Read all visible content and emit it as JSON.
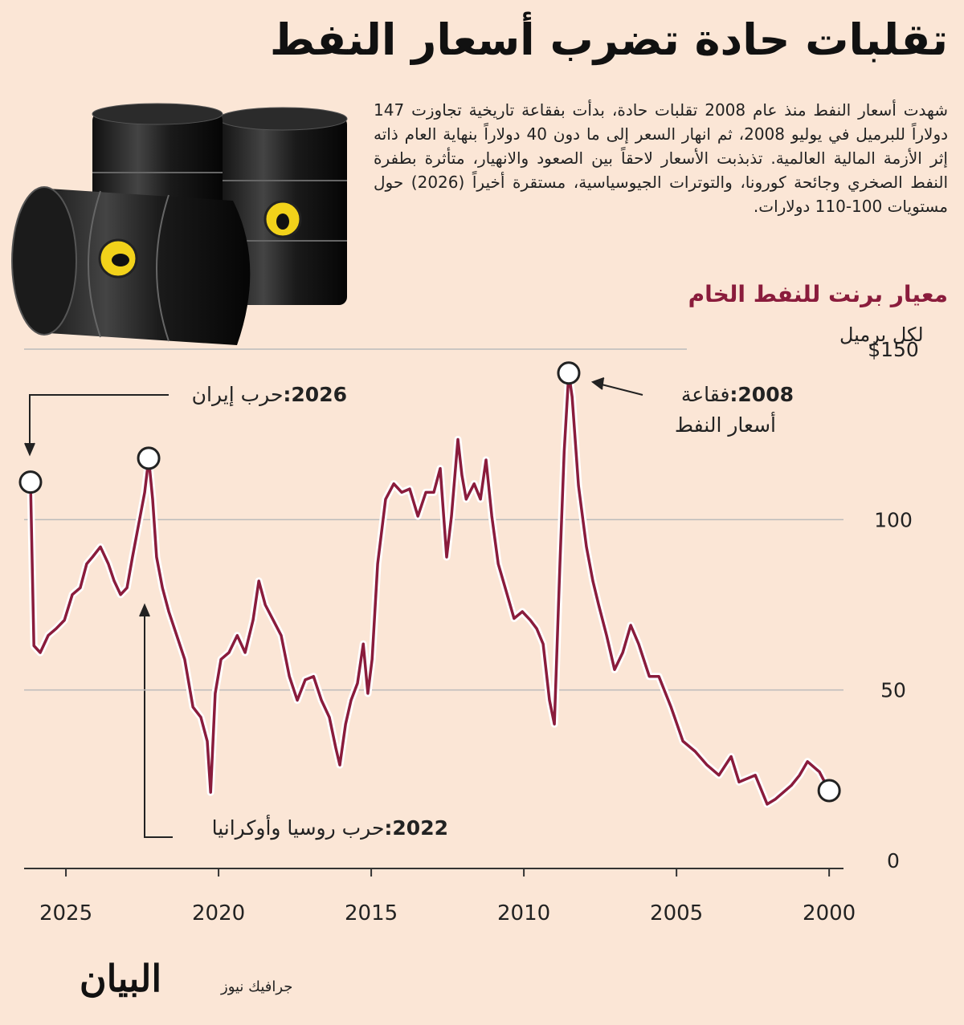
{
  "header": {
    "title": "تقلبات حادة تضرب أسعار النفط",
    "paragraph": "شهدت أسعار النفط منذ عام 2008 تقلبات حادة، بدأت بفقاعة تاريخية تجاوزت 147 دولاراً للبرميل في يوليو 2008، ثم انهار السعر إلى ما دون 40 دولاراً بنهاية العام ذاته إثر الأزمة المالية العالمية. تذبذبت الأسعار لاحقاً بين الصعود والانهيار، متأثرة بطفرة النفط الصخري وجائحة كورونا، والتوترات الجيوسياسية، مستقرة أخيراً (2026) حول مستويات 100-110 دولارات."
  },
  "chart_data": {
    "type": "line",
    "subtitle": "معيار برنت للنفط الخام",
    "ylabel": "لكل برميل",
    "color": "#8a1c3c",
    "grid": true,
    "xlim": [
      2026.37,
      1999.53
    ],
    "xticks": [
      2000,
      2005,
      2010,
      2015,
      2020,
      2025
    ],
    "ylim": [
      0,
      150
    ],
    "yticks": [
      0,
      50,
      100,
      {
        "value": 150,
        "label": "$150"
      }
    ],
    "x": [
      2000.0,
      2000.32,
      2000.71,
      2000.97,
      2001.24,
      2001.76,
      2002.03,
      2002.42,
      2002.95,
      2003.21,
      2003.61,
      2004.0,
      2004.39,
      2004.79,
      2005.18,
      2005.58,
      2005.89,
      2006.24,
      2006.5,
      2006.76,
      2007.03,
      2007.29,
      2007.55,
      2007.74,
      2007.95,
      2008.21,
      2008.42,
      2008.53,
      2008.68,
      2008.82,
      2009.0,
      2009.16,
      2009.37,
      2009.58,
      2009.79,
      2010.05,
      2010.32,
      2010.58,
      2010.84,
      2011.05,
      2011.24,
      2011.42,
      2011.63,
      2011.89,
      2012.03,
      2012.16,
      2012.37,
      2012.53,
      2012.74,
      2012.95,
      2013.21,
      2013.47,
      2013.74,
      2014.0,
      2014.26,
      2014.53,
      2014.79,
      2014.97,
      2015.11,
      2015.26,
      2015.45,
      2015.66,
      2015.84,
      2016.03,
      2016.16,
      2016.37,
      2016.63,
      2016.89,
      2017.16,
      2017.42,
      2017.68,
      2017.95,
      2018.21,
      2018.47,
      2018.68,
      2018.87,
      2019.13,
      2019.39,
      2019.66,
      2019.92,
      2020.11,
      2020.26,
      2020.37,
      2020.58,
      2020.84,
      2021.11,
      2021.37,
      2021.63,
      2021.84,
      2022.03,
      2022.16,
      2022.29,
      2022.42,
      2022.61,
      2022.82,
      2023.0,
      2023.21,
      2023.42,
      2023.61,
      2023.87,
      2024.13,
      2024.32,
      2024.53,
      2024.79,
      2025.05,
      2025.32,
      2025.58,
      2025.84,
      2026.05,
      2026.16
    ],
    "values": [
      20.5,
      26,
      29,
      25,
      22,
      18,
      16.5,
      25,
      23,
      30.5,
      25,
      28,
      32,
      35,
      45,
      54,
      54,
      63.5,
      69,
      61,
      56,
      66,
      75,
      82,
      92,
      110,
      136,
      143,
      120,
      87,
      40,
      47,
      63.5,
      68,
      70.5,
      73,
      71,
      79,
      87,
      101,
      117.5,
      106,
      110.5,
      106,
      113,
      123.5,
      101,
      89,
      115,
      108,
      108,
      101,
      109,
      108,
      110.5,
      106,
      87,
      59,
      49,
      63.5,
      52,
      47,
      40,
      28,
      33,
      42,
      47,
      54,
      53,
      47,
      54,
      66,
      70.5,
      75,
      82,
      70.5,
      61,
      66,
      61,
      59,
      49,
      20,
      35,
      42,
      45,
      59,
      66,
      73,
      80,
      89,
      106,
      118,
      108,
      99,
      89,
      80,
      78,
      82,
      87,
      92,
      89,
      87,
      80,
      78,
      70.5,
      68,
      66,
      61,
      63,
      111
    ],
    "annotations": [
      {
        "year": "2026:",
        "text": "حرب إيران"
      },
      {
        "year": "2008:",
        "text": "فقاعة",
        "text2": "أسعار النفط"
      },
      {
        "year": "2022:",
        "text": "حرب روسيا وأوكرانيا"
      }
    ]
  },
  "footer": {
    "logo": "البيان",
    "credit": "جرافيك نيوز"
  }
}
